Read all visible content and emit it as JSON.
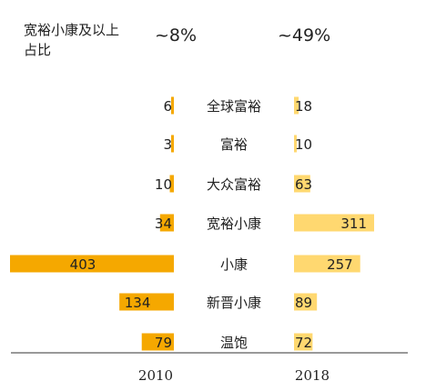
{
  "chart_data": {
    "type": "bar",
    "title": "",
    "legend_label": "宽裕小康及以上占比",
    "years": [
      {
        "label": "2010",
        "share": "~8%",
        "color": "#F5A800"
      },
      {
        "label": "2018",
        "share": "~49%",
        "color": "#FFD870"
      }
    ],
    "categories": [
      "全球富裕",
      "富裕",
      "大众富裕",
      "宽裕小康",
      "小康",
      "新晋小康",
      "温饱"
    ],
    "series": [
      {
        "name": "2010",
        "values": [
          6,
          3,
          10,
          34,
          403,
          134,
          79
        ]
      },
      {
        "name": "2018",
        "values": [
          18,
          10,
          63,
          311,
          257,
          89,
          72
        ]
      }
    ]
  }
}
